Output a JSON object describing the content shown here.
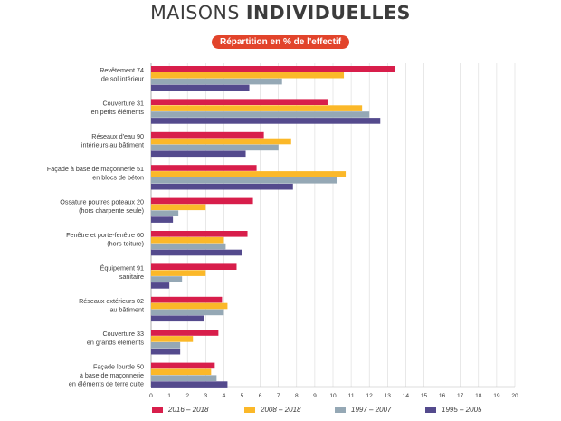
{
  "header": {
    "title_part1": "MAISONS ",
    "title_part2": "INDIVIDUELLES",
    "subtitle": "Répartition en % de l'effectif"
  },
  "chart_data": {
    "type": "bar",
    "orientation": "horizontal",
    "title": "MAISONS INDIVIDUELLES",
    "subtitle": "Répartition en % de l'effectif",
    "categories": [
      {
        "line1": "Revêtement",
        "line2": "de sol intérieur",
        "line3": "",
        "code": "74"
      },
      {
        "line1": "Couverture",
        "line2": "en petits éléments",
        "line3": "",
        "code": "31"
      },
      {
        "line1": "Réseaux d'eau",
        "line2": "intérieurs au bâtiment",
        "line3": "",
        "code": "90"
      },
      {
        "line1": "Façade à base de maçonnerie",
        "line2": "en blocs de béton",
        "line3": "",
        "code": "51"
      },
      {
        "line1": "Ossature poutres poteaux",
        "line2": "(hors charpente seule)",
        "line3": "",
        "code": "20"
      },
      {
        "line1": "Fenêtre et porte-fenêtre",
        "line2": "(hors toiture)",
        "line3": "",
        "code": "60"
      },
      {
        "line1": "Équipement",
        "line2": "sanitaire",
        "line3": "",
        "code": "91"
      },
      {
        "line1": "Réseaux extérieurs",
        "line2": "au bâtiment",
        "line3": "",
        "code": "02"
      },
      {
        "line1": "Couverture",
        "line2": "en grands éléments",
        "line3": "",
        "code": "33"
      },
      {
        "line1": "Façade lourde",
        "line2": "à base de maçonnerie",
        "line3": "en éléments de terre cuite",
        "code": "50"
      }
    ],
    "series": [
      {
        "name": "2016 – 2018",
        "color": "#d81e4b",
        "values": [
          13.4,
          9.7,
          6.2,
          5.8,
          5.6,
          5.3,
          4.7,
          3.9,
          3.7,
          3.5
        ]
      },
      {
        "name": "2008 – 2018",
        "color": "#fbb829",
        "values": [
          10.6,
          11.6,
          7.7,
          10.7,
          3.0,
          4.0,
          3.0,
          4.2,
          2.3,
          3.3
        ]
      },
      {
        "name": "1997 – 2007",
        "color": "#95a8b5",
        "values": [
          7.2,
          12.0,
          7.0,
          10.2,
          1.5,
          4.1,
          1.7,
          4.0,
          1.6,
          3.6
        ]
      },
      {
        "name": "1995 – 2005",
        "color": "#544a8d",
        "values": [
          5.4,
          12.6,
          5.2,
          7.8,
          1.2,
          5.0,
          1.0,
          2.9,
          1.6,
          4.2
        ]
      }
    ],
    "x_ticks": [
      "0",
      "1",
      "2",
      "3",
      "4",
      "5",
      "6",
      "7",
      "8",
      "9",
      "10",
      "11",
      "12",
      "13",
      "14",
      "15",
      "16",
      "17",
      "18",
      "19",
      "20"
    ],
    "xlim": [
      0,
      20
    ],
    "grid": true,
    "legend_position": "bottom"
  }
}
